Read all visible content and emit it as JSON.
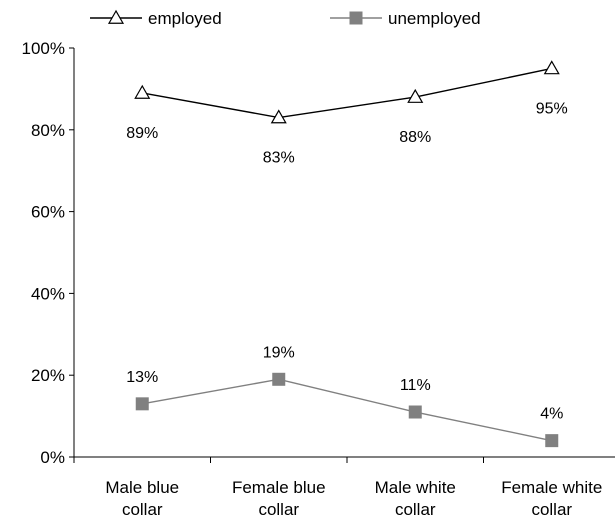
{
  "chart_data": {
    "type": "line",
    "categories": [
      "Male blue collar",
      "Female blue collar",
      "Male white collar",
      "Female white collar"
    ],
    "category_lines": [
      [
        "Male blue",
        "collar"
      ],
      [
        "Female blue",
        "collar"
      ],
      [
        "Male white",
        "collar"
      ],
      [
        "Female white",
        "collar"
      ]
    ],
    "ylim": [
      0,
      100
    ],
    "y_ticks": [
      0,
      20,
      40,
      60,
      80,
      100
    ],
    "y_tick_labels": [
      "0%",
      "20%",
      "40%",
      "60%",
      "80%",
      "100%"
    ],
    "grid": false,
    "legend_position": "top",
    "series": [
      {
        "name": "employed",
        "values": [
          89,
          83,
          88,
          95
        ],
        "labels": [
          "89%",
          "83%",
          "88%",
          "95%"
        ],
        "marker": "triangle-open",
        "color": "#000000",
        "label_position": "below"
      },
      {
        "name": "unemployed",
        "values": [
          13,
          19,
          11,
          4
        ],
        "labels": [
          "13%",
          "19%",
          "11%",
          "4%"
        ],
        "marker": "square-filled",
        "color": "#808080",
        "label_position": "above"
      }
    ]
  }
}
